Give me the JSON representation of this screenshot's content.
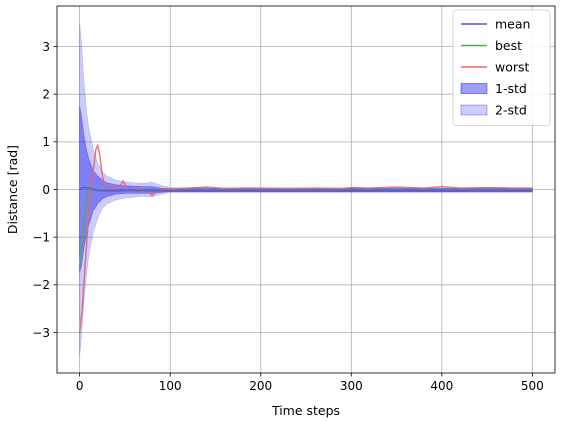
{
  "chart_data": {
    "type": "line",
    "title": "",
    "xlabel": "Time steps",
    "ylabel": "Distance [rad]",
    "xlim": [
      -25,
      525
    ],
    "ylim": [
      -3.85,
      3.85
    ],
    "xticks": [
      0,
      100,
      200,
      300,
      400,
      500
    ],
    "yticks": [
      -3,
      -2,
      -1,
      0,
      1,
      2,
      3
    ],
    "xtick_labels": [
      "0",
      "100",
      "200",
      "300",
      "400",
      "500"
    ],
    "ytick_labels": [
      "−3",
      "−2",
      "−1",
      "0",
      "1",
      "2",
      "3"
    ],
    "grid": true,
    "legend_position": "upper-right",
    "series": [
      {
        "name": "mean",
        "kind": "line",
        "color": "#5555dd",
        "x": [
          0,
          5,
          10,
          15,
          20,
          30,
          40,
          50,
          60,
          70,
          80,
          90,
          100,
          200,
          300,
          400,
          500
        ],
        "y": [
          0.02,
          0.05,
          0.03,
          0.0,
          -0.02,
          -0.03,
          -0.03,
          -0.02,
          -0.02,
          -0.02,
          -0.03,
          -0.03,
          -0.03,
          -0.03,
          -0.03,
          -0.03,
          -0.03
        ]
      },
      {
        "name": "best",
        "kind": "line",
        "color": "#4daf4d",
        "x": [
          0,
          2,
          4,
          6,
          8,
          10,
          12,
          15,
          20,
          30,
          40,
          60,
          80,
          100,
          200,
          300,
          400,
          500
        ],
        "y": [
          -1.6,
          -1.3,
          -0.9,
          -0.5,
          -0.2,
          0.0,
          0.04,
          0.02,
          0.0,
          -0.02,
          -0.02,
          -0.02,
          -0.02,
          -0.02,
          -0.02,
          -0.02,
          -0.02,
          -0.02
        ]
      },
      {
        "name": "worst",
        "kind": "line",
        "color": "#e86666",
        "x": [
          0,
          3,
          6,
          9,
          12,
          15,
          18,
          20,
          22,
          25,
          28,
          32,
          36,
          40,
          45,
          48,
          50,
          53,
          58,
          65,
          70,
          75,
          80,
          85,
          90,
          95,
          100,
          120,
          140,
          160,
          180,
          200,
          230,
          260,
          290,
          300,
          320,
          350,
          380,
          400,
          420,
          450,
          480,
          500
        ],
        "y": [
          -3.0,
          -2.5,
          -1.6,
          -0.8,
          -0.1,
          0.4,
          0.85,
          0.92,
          0.75,
          0.3,
          0.05,
          -0.05,
          0.0,
          0.05,
          0.08,
          0.18,
          0.12,
          -0.02,
          -0.05,
          0.02,
          0.0,
          -0.05,
          -0.12,
          -0.05,
          0.0,
          0.02,
          0.01,
          0.03,
          0.05,
          0.02,
          0.03,
          0.03,
          0.02,
          0.03,
          0.02,
          0.04,
          0.03,
          0.05,
          0.03,
          0.06,
          0.03,
          0.04,
          0.03,
          0.03
        ]
      },
      {
        "name": "1-std",
        "kind": "band",
        "color": "#0000ee",
        "opacity": 0.38,
        "x": [
          0,
          2,
          5,
          8,
          10,
          15,
          20,
          25,
          30,
          40,
          50,
          60,
          70,
          80,
          90,
          100,
          200,
          300,
          400,
          500
        ],
        "lower": [
          -1.75,
          -1.6,
          -1.2,
          -0.9,
          -0.75,
          -0.45,
          -0.3,
          -0.2,
          -0.15,
          -0.1,
          -0.08,
          -0.08,
          -0.08,
          -0.08,
          -0.06,
          -0.05,
          -0.05,
          -0.05,
          -0.05,
          -0.05
        ],
        "upper": [
          1.75,
          1.55,
          1.1,
          0.8,
          0.65,
          0.4,
          0.28,
          0.2,
          0.14,
          0.1,
          0.08,
          0.07,
          0.06,
          0.06,
          0.03,
          0.02,
          0.02,
          0.02,
          0.02,
          0.02
        ]
      },
      {
        "name": "2-std",
        "kind": "band",
        "color": "#0000ee",
        "opacity": 0.2,
        "x": [
          0,
          2,
          5,
          8,
          10,
          15,
          20,
          25,
          30,
          40,
          50,
          60,
          70,
          80,
          90,
          100,
          200,
          300,
          400,
          500
        ],
        "lower": [
          -3.5,
          -3.1,
          -2.3,
          -1.7,
          -1.4,
          -0.9,
          -0.6,
          -0.4,
          -0.3,
          -0.22,
          -0.18,
          -0.16,
          -0.14,
          -0.16,
          -0.1,
          -0.06,
          -0.06,
          -0.06,
          -0.06,
          -0.06
        ],
        "upper": [
          3.5,
          3.1,
          2.2,
          1.6,
          1.3,
          0.85,
          0.55,
          0.38,
          0.28,
          0.2,
          0.16,
          0.14,
          0.13,
          0.15,
          0.09,
          0.04,
          0.03,
          0.03,
          0.03,
          0.03
        ]
      }
    ]
  }
}
